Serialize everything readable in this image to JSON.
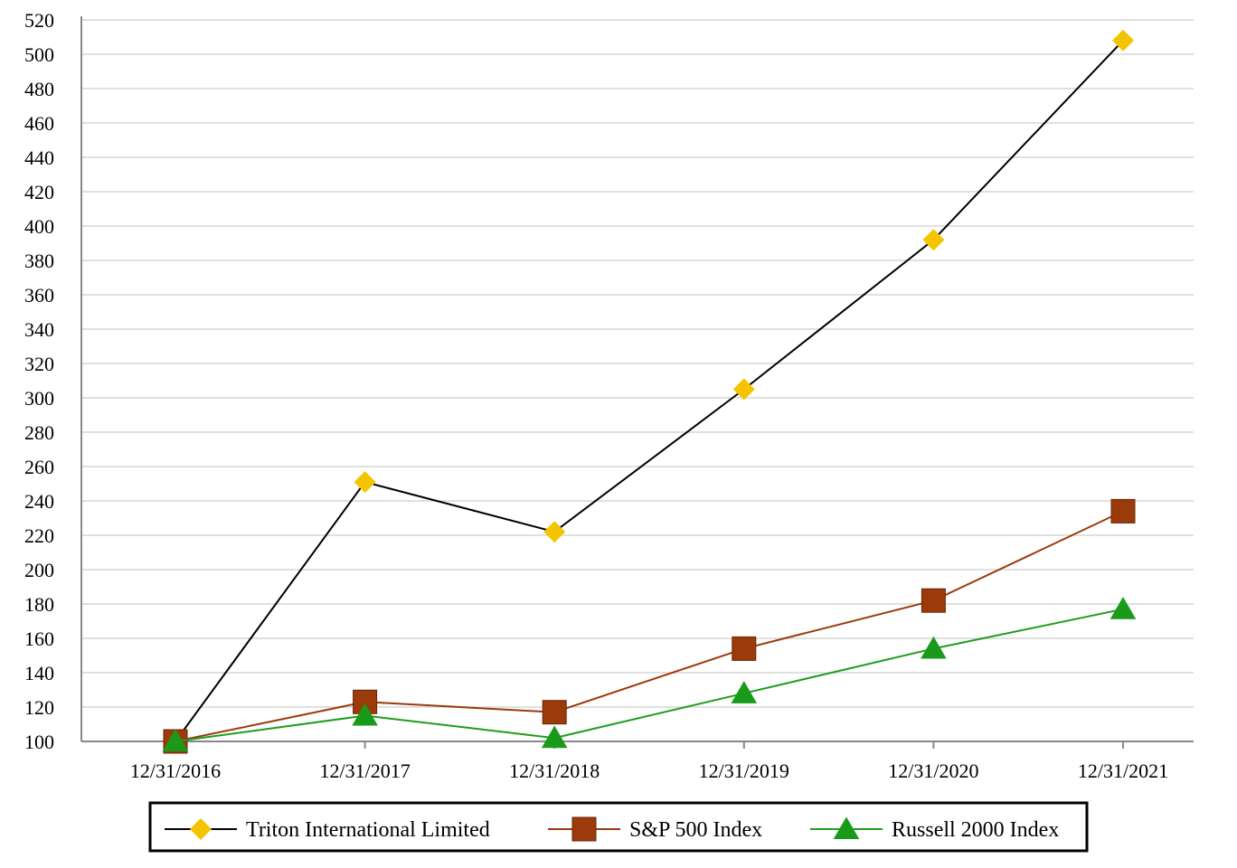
{
  "chart_data": {
    "type": "line",
    "title": "",
    "xlabel": "",
    "ylabel": "",
    "categories": [
      "12/31/2016",
      "12/31/2017",
      "12/31/2018",
      "12/31/2019",
      "12/31/2020",
      "12/31/2021"
    ],
    "ylim": [
      100,
      520
    ],
    "ytick_step": 20,
    "grid": "horizontal",
    "legend_position": "bottom",
    "series": [
      {
        "name": "Triton International Limited",
        "values": [
          100,
          251,
          222,
          305,
          392,
          508
        ],
        "line_color": "#000000",
        "marker": "diamond",
        "marker_color": "#F5C400"
      },
      {
        "name": "S&P 500 Index",
        "values": [
          100,
          123,
          117,
          154,
          182,
          234
        ],
        "line_color": "#9B3A0B",
        "marker": "square",
        "marker_color": "#9B3A0B"
      },
      {
        "name": "Russell 2000 Index",
        "values": [
          100,
          115,
          102,
          128,
          154,
          177
        ],
        "line_color": "#1E9E1E",
        "marker": "triangle",
        "marker_color": "#1A9A1A"
      }
    ]
  }
}
